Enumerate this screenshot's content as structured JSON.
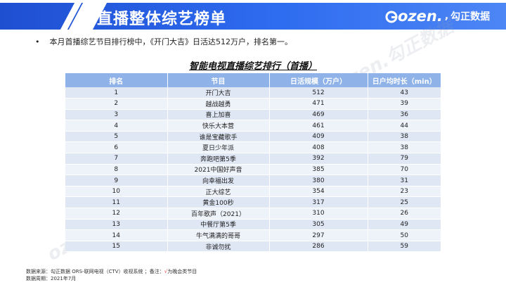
{
  "header": {
    "title": "直播整体综艺榜单",
    "logo_mark": "ozen.",
    "logo_cn": "勾正数据"
  },
  "summary": {
    "bullet": "•",
    "text": "本月首播综艺节目排行榜中，《开门大吉》日活达512万户，排名第一。"
  },
  "table": {
    "title": "智能电视直播综艺排行（首播）",
    "columns": [
      "排名",
      "节目",
      "日活规模（万户）",
      "日户均时长（min）"
    ],
    "rows": [
      [
        "1",
        "开门大吉",
        "512",
        "43"
      ],
      [
        "2",
        "越战越勇",
        "471",
        "39"
      ],
      [
        "3",
        "喜上加喜",
        "469",
        "36"
      ],
      [
        "4",
        "快乐大本营",
        "461",
        "44"
      ],
      [
        "5",
        "谁是宝藏歌手",
        "409",
        "38"
      ],
      [
        "6",
        "夏日少年派",
        "408",
        "38"
      ],
      [
        "7",
        "奔跑吧第5季",
        "392",
        "79"
      ],
      [
        "8",
        "2021中国好声音",
        "385",
        "70"
      ],
      [
        "9",
        "向幸福出发",
        "380",
        "31"
      ],
      [
        "10",
        "正大综艺",
        "354",
        "23"
      ],
      [
        "11",
        "黄金100秒",
        "317",
        "25"
      ],
      [
        "12",
        "百年歌声（2021）",
        "310",
        "26"
      ],
      [
        "13",
        "中餐厅第5季",
        "305",
        "49"
      ],
      [
        "14",
        "牛气满满的哥哥",
        "297",
        "50"
      ],
      [
        "15",
        "非诚勿扰",
        "286",
        "59"
      ]
    ]
  },
  "watermarks": [
    "ozen.勾正数据",
    "ozen.勾正数据"
  ],
  "footer": {
    "source_prefix": "数据来源：勾正数据 ORS-联网电视（CTV）收视系统 ；备注：",
    "source_mark": "√",
    "source_suffix": "为晚会类节目",
    "period": "数据周期：2021年7月"
  }
}
